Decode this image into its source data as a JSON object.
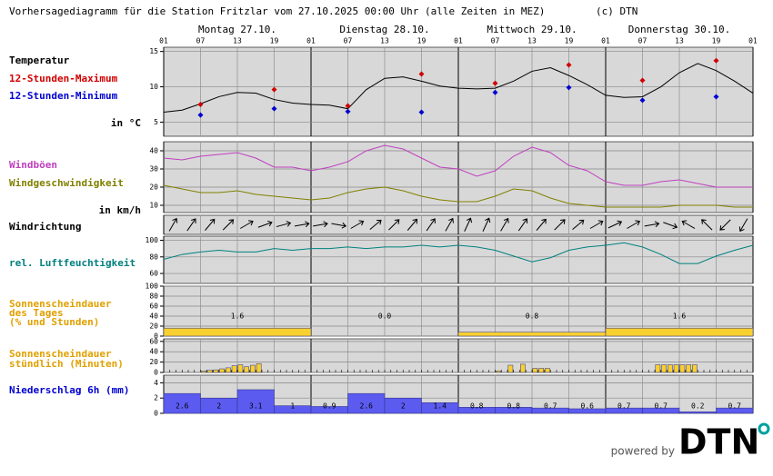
{
  "header": {
    "title": "Vorhersagediagramm für die Station Fritzlar vom 27.10.2025 00:00 Uhr (alle Zeiten in MEZ)",
    "copyright": "(c) DTN"
  },
  "days": [
    "Montag 27.10.",
    "Dienstag 28.10.",
    "Mittwoch 29.10.",
    "Donnerstag 30.10."
  ],
  "xlim": [
    0,
    96
  ],
  "xticks": [
    {
      "value": 0,
      "label": "01"
    },
    {
      "value": 6,
      "label": "07"
    },
    {
      "value": 12,
      "label": "13"
    },
    {
      "value": 18,
      "label": "19"
    },
    {
      "value": 24,
      "label": "01"
    },
    {
      "value": 30,
      "label": "07"
    },
    {
      "value": 36,
      "label": "13"
    },
    {
      "value": 42,
      "label": "19"
    },
    {
      "value": 48,
      "label": "01"
    },
    {
      "value": 54,
      "label": "07"
    },
    {
      "value": 60,
      "label": "13"
    },
    {
      "value": 66,
      "label": "19"
    },
    {
      "value": 72,
      "label": "01"
    },
    {
      "value": 78,
      "label": "07"
    },
    {
      "value": 84,
      "label": "13"
    },
    {
      "value": 90,
      "label": "19"
    },
    {
      "value": 96,
      "label": "01"
    }
  ],
  "footer": {
    "powered_by": "powered by",
    "logo": "DTN"
  },
  "chart_data": [
    {
      "type": "line",
      "title": "Temperatur",
      "title_color": "#000000",
      "unit": "in °C",
      "ylim": [
        3,
        15.6
      ],
      "yticks": [
        5,
        10,
        15
      ],
      "x": [
        0,
        3,
        6,
        9,
        12,
        15,
        18,
        21,
        24,
        27,
        30,
        33,
        36,
        39,
        42,
        45,
        48,
        51,
        54,
        57,
        60,
        63,
        66,
        69,
        72,
        75,
        78,
        81,
        84,
        87,
        90,
        93,
        96
      ],
      "series": [
        {
          "color": "#000000",
          "values": [
            6.4,
            6.7,
            7.6,
            8.6,
            9.2,
            9.1,
            8.2,
            7.7,
            7.5,
            7.4,
            6.9,
            9.6,
            11.2,
            11.4,
            10.8,
            10.1,
            9.8,
            9.7,
            9.8,
            10.8,
            12.2,
            12.7,
            11.6,
            10.3,
            8.8,
            8.5,
            8.6,
            10.0,
            12.0,
            13.3,
            12.3,
            10.8,
            9.1
          ]
        },
        {
          "name": "12-Stunden-Maximum",
          "color": "#d00000",
          "marker": true,
          "x": [
            6,
            18,
            30,
            42,
            54,
            66,
            78,
            90
          ],
          "values": [
            7.5,
            9.6,
            7.3,
            11.8,
            10.5,
            13.1,
            10.9,
            13.7
          ]
        },
        {
          "name": "12-Stunden-Minimum",
          "color": "#0000d0",
          "marker": true,
          "x": [
            6,
            18,
            30,
            42,
            54,
            66,
            78,
            90
          ],
          "values": [
            6.0,
            6.9,
            6.5,
            6.4,
            9.2,
            9.9,
            8.1,
            8.6
          ]
        }
      ]
    },
    {
      "type": "line",
      "unit": "in km/h",
      "ylim": [
        6,
        45
      ],
      "yticks": [
        10,
        20,
        30,
        40
      ],
      "x": [
        0,
        3,
        6,
        9,
        12,
        15,
        18,
        21,
        24,
        27,
        30,
        33,
        36,
        39,
        42,
        45,
        48,
        51,
        54,
        57,
        60,
        63,
        66,
        69,
        72,
        75,
        78,
        81,
        84,
        87,
        90,
        93,
        96
      ],
      "series": [
        {
          "name": "Windböen",
          "color": "#c040c0",
          "values": [
            36,
            35,
            37,
            38,
            39,
            36,
            31,
            31,
            29,
            31,
            34,
            40,
            43,
            41,
            36,
            31,
            30,
            26,
            29,
            37,
            42,
            39,
            32,
            29,
            23,
            21,
            21,
            23,
            24,
            22,
            20,
            20,
            20
          ]
        },
        {
          "name": "Windgeschwindigkeit",
          "color": "#808000",
          "values": [
            21,
            19,
            17,
            17,
            18,
            16,
            15,
            14,
            13,
            14,
            17,
            19,
            20,
            18,
            15,
            13,
            12,
            12,
            15,
            19,
            18,
            14,
            11,
            10,
            9,
            9,
            9,
            9,
            10,
            10,
            10,
            9,
            9
          ]
        }
      ]
    },
    {
      "type": "arrows",
      "title": "Windrichtung",
      "title_color": "#000000",
      "x": [
        1.5,
        4.5,
        7.5,
        10.5,
        13.5,
        16.5,
        19.5,
        22.5,
        25.5,
        28.5,
        31.5,
        34.5,
        37.5,
        40.5,
        43.5,
        46.5,
        49.5,
        52.5,
        55.5,
        58.5,
        61.5,
        64.5,
        67.5,
        70.5,
        73.5,
        76.5,
        79.5,
        82.5,
        85.5,
        88.5,
        91.5,
        94.5
      ],
      "values": [
        30,
        35,
        40,
        45,
        60,
        70,
        75,
        80,
        80,
        100,
        60,
        50,
        45,
        40,
        35,
        30,
        25,
        25,
        30,
        35,
        40,
        45,
        50,
        60,
        65,
        60,
        80,
        110,
        300,
        315,
        225,
        210
      ]
    },
    {
      "type": "line",
      "ylim": [
        48,
        105
      ],
      "yticks": [
        60,
        80,
        100
      ],
      "x": [
        0,
        3,
        6,
        9,
        12,
        15,
        18,
        21,
        24,
        27,
        30,
        33,
        36,
        39,
        42,
        45,
        48,
        51,
        54,
        57,
        60,
        63,
        66,
        69,
        72,
        75,
        78,
        81,
        84,
        87,
        90,
        93,
        96
      ],
      "series": [
        {
          "name": "rel. Luftfeuchtigkeit",
          "color": "#008080",
          "values": [
            77,
            83,
            86,
            88,
            86,
            86,
            90,
            88,
            90,
            90,
            92,
            90,
            92,
            92,
            94,
            92,
            94,
            92,
            88,
            81,
            74,
            79,
            88,
            92,
            94,
            97,
            92,
            83,
            72,
            72,
            81,
            88,
            94
          ]
        }
      ]
    },
    {
      "type": "histogram",
      "title": [
        "Sonnenscheindauer",
        "des Tages",
        "(% und Stunden)"
      ],
      "title_color": "#e0a000",
      "ylim": [
        0,
        100
      ],
      "yticks": [
        0,
        20,
        40,
        60,
        80,
        100
      ],
      "color": "#f8d030",
      "bins": [
        0,
        24,
        48,
        72,
        96
      ],
      "values": [
        16,
        0,
        8,
        16
      ],
      "hours_labels": [
        "1.6",
        "0.0",
        "0.8",
        "1.6"
      ]
    },
    {
      "type": "histogram",
      "title": [
        "Sonnenscheindauer",
        "stündlich (Minuten)"
      ],
      "title_color": "#e0a000",
      "ylim": [
        0,
        65
      ],
      "yticks": [
        0,
        20,
        40,
        60
      ],
      "color": "#f8d030",
      "bins": [
        0,
        1,
        2,
        3,
        4,
        5,
        6,
        7,
        8,
        9,
        10,
        11,
        12,
        13,
        14,
        15,
        16,
        17,
        18,
        19,
        20,
        21,
        22,
        23,
        24,
        25,
        26,
        27,
        28,
        29,
        30,
        31,
        32,
        33,
        34,
        35,
        36,
        37,
        38,
        39,
        40,
        41,
        42,
        43,
        44,
        45,
        46,
        47,
        48,
        49,
        50,
        51,
        52,
        53,
        54,
        55,
        56,
        57,
        58,
        59,
        60,
        61,
        62,
        63,
        64,
        65,
        66,
        67,
        68,
        69,
        70,
        71,
        72,
        73,
        74,
        75,
        76,
        77,
        78,
        79,
        80,
        81,
        82,
        83,
        84,
        85,
        86,
        87,
        88,
        89,
        90,
        91,
        92,
        93,
        94,
        95,
        96
      ],
      "values": [
        0,
        0,
        0,
        0,
        0,
        0,
        3,
        4,
        5,
        7,
        9,
        13,
        15,
        11,
        14,
        17,
        0,
        0,
        0,
        0,
        0,
        0,
        0,
        0,
        0,
        0,
        0,
        0,
        0,
        0,
        0,
        0,
        0,
        0,
        0,
        0,
        0,
        0,
        0,
        0,
        0,
        0,
        0,
        0,
        0,
        0,
        0,
        0,
        0,
        0,
        0,
        0,
        0,
        0,
        3,
        0,
        14,
        0,
        16,
        0,
        8,
        8,
        8,
        0,
        0,
        0,
        0,
        0,
        0,
        0,
        0,
        0,
        0,
        0,
        0,
        0,
        0,
        0,
        0,
        0,
        15,
        15,
        15,
        15,
        15,
        15,
        15,
        0,
        0,
        0,
        0,
        0,
        0,
        0,
        0,
        0
      ]
    },
    {
      "type": "histogram",
      "title": "Niederschlag 6h (mm)",
      "title_color": "#0000d0",
      "ylim": [
        0,
        5
      ],
      "yticks": [
        0,
        2,
        4
      ],
      "color": "#5b5bf0",
      "print_values": true,
      "bins": [
        0,
        6,
        12,
        18,
        24,
        30,
        36,
        42,
        48,
        54,
        60,
        66,
        72,
        78,
        84,
        90,
        96
      ],
      "values": [
        2.6,
        2,
        3.1,
        1,
        0.9,
        2.6,
        2,
        1.4,
        0.8,
        0.8,
        0.7,
        0.6,
        0.7,
        0.7,
        0.2,
        0.7
      ]
    }
  ]
}
